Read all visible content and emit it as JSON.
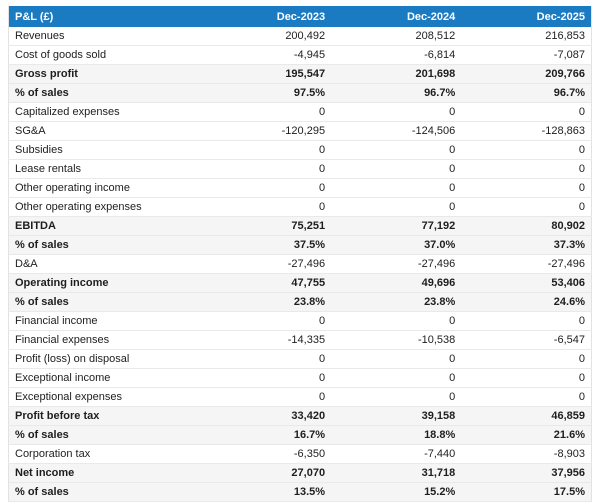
{
  "colors": {
    "header_bg": "#1a7ac2",
    "header_text": "#ffffff",
    "total_row_bg": "#f5f5f5",
    "row_bg": "#ffffff",
    "text": "#1e1e1e",
    "row_border": "#e9e9e9"
  },
  "table": {
    "header_label": "P&L (£)",
    "columns": [
      "Dec-2023",
      "Dec-2024",
      "Dec-2025"
    ],
    "rows": [
      {
        "label": "Revenues",
        "values": [
          "200,492",
          "208,512",
          "216,853"
        ],
        "emphasis": false
      },
      {
        "label": "Cost of goods sold",
        "values": [
          "-4,945",
          "-6,814",
          "-7,087"
        ],
        "emphasis": false
      },
      {
        "label": "Gross profit",
        "values": [
          "195,547",
          "201,698",
          "209,766"
        ],
        "emphasis": true
      },
      {
        "label": "% of sales",
        "values": [
          "97.5%",
          "96.7%",
          "96.7%"
        ],
        "emphasis": true
      },
      {
        "label": "Capitalized expenses",
        "values": [
          "0",
          "0",
          "0"
        ],
        "emphasis": false
      },
      {
        "label": "SG&A",
        "values": [
          "-120,295",
          "-124,506",
          "-128,863"
        ],
        "emphasis": false
      },
      {
        "label": "Subsidies",
        "values": [
          "0",
          "0",
          "0"
        ],
        "emphasis": false
      },
      {
        "label": "Lease rentals",
        "values": [
          "0",
          "0",
          "0"
        ],
        "emphasis": false
      },
      {
        "label": "Other operating income",
        "values": [
          "0",
          "0",
          "0"
        ],
        "emphasis": false
      },
      {
        "label": "Other operating expenses",
        "values": [
          "0",
          "0",
          "0"
        ],
        "emphasis": false
      },
      {
        "label": "EBITDA",
        "values": [
          "75,251",
          "77,192",
          "80,902"
        ],
        "emphasis": true
      },
      {
        "label": "% of sales",
        "values": [
          "37.5%",
          "37.0%",
          "37.3%"
        ],
        "emphasis": true
      },
      {
        "label": "D&A",
        "values": [
          "-27,496",
          "-27,496",
          "-27,496"
        ],
        "emphasis": false
      },
      {
        "label": "Operating income",
        "values": [
          "47,755",
          "49,696",
          "53,406"
        ],
        "emphasis": true
      },
      {
        "label": "% of sales",
        "values": [
          "23.8%",
          "23.8%",
          "24.6%"
        ],
        "emphasis": true
      },
      {
        "label": "Financial income",
        "values": [
          "0",
          "0",
          "0"
        ],
        "emphasis": false
      },
      {
        "label": "Financial expenses",
        "values": [
          "-14,335",
          "-10,538",
          "-6,547"
        ],
        "emphasis": false
      },
      {
        "label": "Profit (loss) on disposal",
        "values": [
          "0",
          "0",
          "0"
        ],
        "emphasis": false
      },
      {
        "label": "Exceptional income",
        "values": [
          "0",
          "0",
          "0"
        ],
        "emphasis": false
      },
      {
        "label": "Exceptional expenses",
        "values": [
          "0",
          "0",
          "0"
        ],
        "emphasis": false
      },
      {
        "label": "Profit before tax",
        "values": [
          "33,420",
          "39,158",
          "46,859"
        ],
        "emphasis": true
      },
      {
        "label": "% of sales",
        "values": [
          "16.7%",
          "18.8%",
          "21.6%"
        ],
        "emphasis": true
      },
      {
        "label": "Corporation tax",
        "values": [
          "-6,350",
          "-7,440",
          "-8,903"
        ],
        "emphasis": false
      },
      {
        "label": "Net income",
        "values": [
          "27,070",
          "31,718",
          "37,956"
        ],
        "emphasis": true
      },
      {
        "label": "% of sales",
        "values": [
          "13.5%",
          "15.2%",
          "17.5%"
        ],
        "emphasis": true
      }
    ]
  },
  "chart_data": {
    "type": "table",
    "title": "P&L (£)",
    "columns": [
      "Dec-2023",
      "Dec-2024",
      "Dec-2025"
    ],
    "rows": [
      {
        "label": "Revenues",
        "values": [
          200492,
          208512,
          216853
        ]
      },
      {
        "label": "Cost of goods sold",
        "values": [
          -4945,
          -6814,
          -7087
        ]
      },
      {
        "label": "Gross profit",
        "values": [
          195547,
          201698,
          209766
        ]
      },
      {
        "label": "Gross profit % of sales",
        "values": [
          97.5,
          96.7,
          96.7
        ],
        "unit": "%"
      },
      {
        "label": "Capitalized expenses",
        "values": [
          0,
          0,
          0
        ]
      },
      {
        "label": "SG&A",
        "values": [
          -120295,
          -124506,
          -128863
        ]
      },
      {
        "label": "Subsidies",
        "values": [
          0,
          0,
          0
        ]
      },
      {
        "label": "Lease rentals",
        "values": [
          0,
          0,
          0
        ]
      },
      {
        "label": "Other operating income",
        "values": [
          0,
          0,
          0
        ]
      },
      {
        "label": "Other operating expenses",
        "values": [
          0,
          0,
          0
        ]
      },
      {
        "label": "EBITDA",
        "values": [
          75251,
          77192,
          80902
        ]
      },
      {
        "label": "EBITDA % of sales",
        "values": [
          37.5,
          37.0,
          37.3
        ],
        "unit": "%"
      },
      {
        "label": "D&A",
        "values": [
          -27496,
          -27496,
          -27496
        ]
      },
      {
        "label": "Operating income",
        "values": [
          47755,
          49696,
          53406
        ]
      },
      {
        "label": "Operating income % of sales",
        "values": [
          23.8,
          23.8,
          24.6
        ],
        "unit": "%"
      },
      {
        "label": "Financial income",
        "values": [
          0,
          0,
          0
        ]
      },
      {
        "label": "Financial expenses",
        "values": [
          -14335,
          -10538,
          -6547
        ]
      },
      {
        "label": "Profit (loss) on disposal",
        "values": [
          0,
          0,
          0
        ]
      },
      {
        "label": "Exceptional income",
        "values": [
          0,
          0,
          0
        ]
      },
      {
        "label": "Exceptional expenses",
        "values": [
          0,
          0,
          0
        ]
      },
      {
        "label": "Profit before tax",
        "values": [
          33420,
          39158,
          46859
        ]
      },
      {
        "label": "Profit before tax % of sales",
        "values": [
          16.7,
          18.8,
          21.6
        ],
        "unit": "%"
      },
      {
        "label": "Corporation tax",
        "values": [
          -6350,
          -7440,
          -8903
        ]
      },
      {
        "label": "Net income",
        "values": [
          27070,
          31718,
          37956
        ]
      },
      {
        "label": "Net income % of sales",
        "values": [
          13.5,
          15.2,
          17.5
        ],
        "unit": "%"
      }
    ]
  }
}
